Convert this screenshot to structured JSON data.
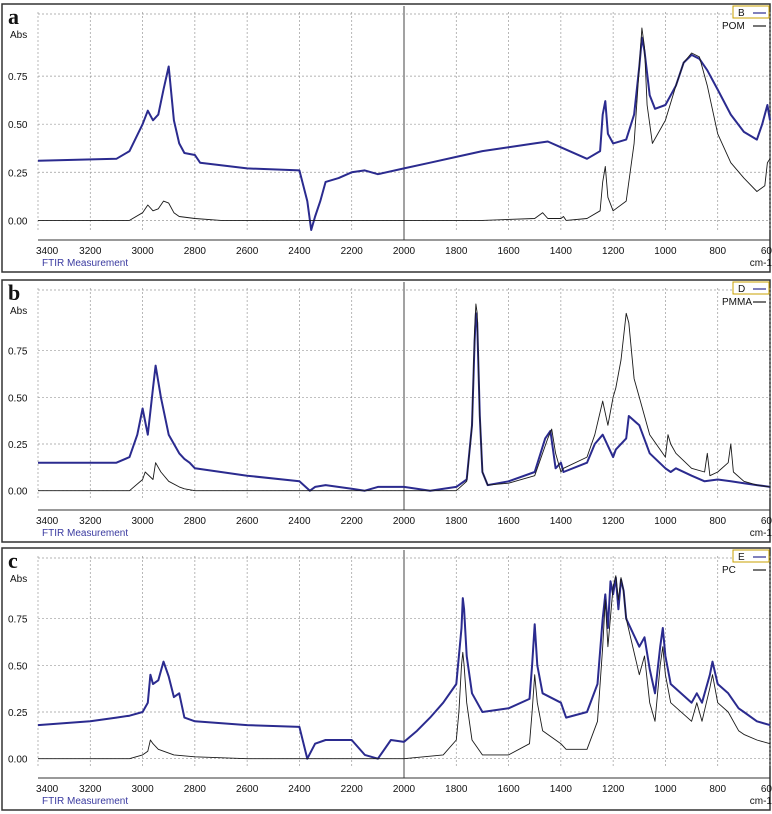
{
  "colors": {
    "sample_line": "#2b2b8f",
    "reference_line": "#1a1a1a",
    "grid": "#9a9a9a",
    "legend_box_border": "#c8a000",
    "footer_text": "#3a3aa0",
    "panel_border": "#333333"
  },
  "chart_data": [
    {
      "type": "line",
      "panel_label": "a",
      "ylabel": "Abs",
      "xunit_label": "cm-1",
      "footer": "FTIR Measurement",
      "x_ticks": [
        3400,
        3200,
        3000,
        2800,
        2600,
        2400,
        2200,
        2000,
        1800,
        1600,
        1400,
        1200,
        1000,
        800,
        "60"
      ],
      "y_ticks": [
        "0.00",
        "0.25",
        "0.50",
        "0.75"
      ],
      "xlim": [
        3400,
        600
      ],
      "ylim": [
        -0.05,
        1.0
      ],
      "legend": [
        {
          "label": "B"
        },
        {
          "label": "POM"
        }
      ],
      "series": [
        {
          "name": "B",
          "x": [
            3400,
            3100,
            3050,
            3000,
            2980,
            2960,
            2940,
            2920,
            2900,
            2880,
            2860,
            2840,
            2800,
            2780,
            2600,
            2400,
            2370,
            2355,
            2340,
            2320,
            2300,
            2250,
            2200,
            2150,
            2100,
            2000,
            1900,
            1800,
            1700,
            1600,
            1500,
            1450,
            1400,
            1300,
            1250,
            1240,
            1230,
            1220,
            1200,
            1150,
            1120,
            1100,
            1090,
            1080,
            1060,
            1040,
            1000,
            960,
            930,
            900,
            870,
            840,
            800,
            750,
            700,
            650,
            630,
            610,
            600
          ],
          "y": [
            0.31,
            0.32,
            0.36,
            0.5,
            0.57,
            0.52,
            0.55,
            0.68,
            0.8,
            0.52,
            0.4,
            0.35,
            0.34,
            0.3,
            0.27,
            0.26,
            0.1,
            -0.05,
            0.02,
            0.1,
            0.2,
            0.22,
            0.25,
            0.26,
            0.24,
            0.27,
            0.3,
            0.33,
            0.36,
            0.38,
            0.4,
            0.41,
            0.38,
            0.32,
            0.36,
            0.55,
            0.62,
            0.45,
            0.4,
            0.42,
            0.55,
            0.8,
            0.95,
            0.88,
            0.65,
            0.58,
            0.6,
            0.7,
            0.82,
            0.86,
            0.84,
            0.78,
            0.68,
            0.55,
            0.46,
            0.42,
            0.5,
            0.6,
            0.52
          ]
        },
        {
          "name": "POM",
          "x": [
            3400,
            3050,
            3000,
            2980,
            2960,
            2940,
            2920,
            2900,
            2880,
            2860,
            2800,
            2700,
            2400,
            2000,
            1700,
            1500,
            1470,
            1450,
            1400,
            1390,
            1380,
            1300,
            1250,
            1240,
            1230,
            1220,
            1200,
            1150,
            1120,
            1100,
            1090,
            1080,
            1070,
            1050,
            1000,
            960,
            930,
            900,
            870,
            840,
            800,
            750,
            700,
            650,
            620,
            610,
            600
          ],
          "y": [
            0.0,
            0.0,
            0.04,
            0.08,
            0.05,
            0.06,
            0.1,
            0.09,
            0.04,
            0.02,
            0.01,
            0.0,
            0.0,
            0.0,
            0.0,
            0.01,
            0.04,
            0.01,
            0.01,
            0.02,
            0.0,
            0.01,
            0.05,
            0.2,
            0.28,
            0.12,
            0.05,
            0.1,
            0.4,
            0.8,
            1.0,
            0.9,
            0.6,
            0.4,
            0.52,
            0.7,
            0.82,
            0.87,
            0.85,
            0.7,
            0.45,
            0.3,
            0.22,
            0.15,
            0.18,
            0.3,
            0.32
          ]
        }
      ]
    },
    {
      "type": "line",
      "panel_label": "b",
      "ylabel": "Abs",
      "xunit_label": "cm-1",
      "footer": "FTIR Measurement",
      "x_ticks": [
        3400,
        3200,
        3000,
        2800,
        2600,
        2400,
        2200,
        2000,
        1800,
        1600,
        1400,
        1200,
        1000,
        800,
        "60"
      ],
      "y_ticks": [
        "0.00",
        "0.25",
        "0.50",
        "0.75"
      ],
      "xlim": [
        3400,
        600
      ],
      "ylim": [
        -0.05,
        1.0
      ],
      "legend": [
        {
          "label": "D"
        },
        {
          "label": "PMMA"
        }
      ],
      "series": [
        {
          "name": "D",
          "x": [
            3400,
            3100,
            3050,
            3020,
            3000,
            2980,
            2960,
            2950,
            2930,
            2900,
            2860,
            2840,
            2820,
            2800,
            2600,
            2400,
            2360,
            2340,
            2300,
            2200,
            2150,
            2100,
            2000,
            1900,
            1800,
            1760,
            1740,
            1730,
            1725,
            1720,
            1710,
            1700,
            1680,
            1600,
            1500,
            1460,
            1440,
            1430,
            1420,
            1400,
            1390,
            1300,
            1270,
            1240,
            1200,
            1190,
            1150,
            1140,
            1100,
            1060,
            1000,
            980,
            960,
            900,
            850,
            800,
            750,
            700,
            650,
            600
          ],
          "y": [
            0.15,
            0.15,
            0.18,
            0.3,
            0.44,
            0.3,
            0.55,
            0.67,
            0.5,
            0.3,
            0.2,
            0.17,
            0.15,
            0.12,
            0.08,
            0.05,
            0.0,
            0.02,
            0.03,
            0.01,
            0.0,
            0.02,
            0.02,
            0.0,
            0.02,
            0.06,
            0.35,
            0.8,
            0.95,
            0.9,
            0.4,
            0.1,
            0.03,
            0.05,
            0.1,
            0.28,
            0.32,
            0.22,
            0.12,
            0.15,
            0.1,
            0.15,
            0.25,
            0.3,
            0.18,
            0.22,
            0.28,
            0.4,
            0.35,
            0.2,
            0.12,
            0.1,
            0.12,
            0.08,
            0.05,
            0.06,
            0.05,
            0.04,
            0.03,
            0.02
          ]
        },
        {
          "name": "PMMA",
          "x": [
            3400,
            3050,
            3000,
            2990,
            2960,
            2950,
            2930,
            2900,
            2860,
            2840,
            2800,
            2600,
            2400,
            2000,
            1800,
            1760,
            1740,
            1730,
            1725,
            1720,
            1710,
            1700,
            1680,
            1600,
            1500,
            1450,
            1435,
            1420,
            1400,
            1390,
            1300,
            1270,
            1240,
            1220,
            1200,
            1190,
            1170,
            1150,
            1140,
            1120,
            1100,
            1060,
            1000,
            990,
            980,
            960,
            900,
            850,
            840,
            830,
            800,
            760,
            750,
            740,
            700,
            650,
            600
          ],
          "y": [
            0.0,
            0.0,
            0.06,
            0.1,
            0.06,
            0.15,
            0.1,
            0.05,
            0.02,
            0.01,
            0.0,
            0.0,
            0.0,
            0.0,
            0.0,
            0.05,
            0.35,
            0.85,
            1.0,
            0.95,
            0.4,
            0.1,
            0.03,
            0.04,
            0.08,
            0.28,
            0.33,
            0.2,
            0.1,
            0.12,
            0.18,
            0.3,
            0.48,
            0.35,
            0.5,
            0.55,
            0.7,
            0.95,
            0.9,
            0.6,
            0.5,
            0.3,
            0.18,
            0.3,
            0.25,
            0.2,
            0.12,
            0.1,
            0.2,
            0.08,
            0.1,
            0.15,
            0.25,
            0.1,
            0.05,
            0.03,
            0.02
          ]
        }
      ]
    },
    {
      "type": "line",
      "panel_label": "c",
      "ylabel": "Abs",
      "xunit_label": "cm-1",
      "footer": "FTIR Measurement",
      "x_ticks": [
        3400,
        3200,
        3000,
        2800,
        2600,
        2400,
        2200,
        2000,
        1800,
        1600,
        1400,
        1200,
        1000,
        800,
        "60"
      ],
      "y_ticks": [
        "0.00",
        "0.25",
        "0.50",
        "0.75"
      ],
      "xlim": [
        3400,
        600
      ],
      "ylim": [
        -0.05,
        1.0
      ],
      "legend": [
        {
          "label": "E"
        },
        {
          "label": "PC"
        }
      ],
      "series": [
        {
          "name": "E",
          "x": [
            3400,
            3200,
            3100,
            3050,
            3000,
            2980,
            2970,
            2960,
            2940,
            2920,
            2900,
            2880,
            2860,
            2840,
            2800,
            2600,
            2400,
            2370,
            2340,
            2300,
            2200,
            2150,
            2100,
            2050,
            2000,
            1950,
            1900,
            1850,
            1800,
            1780,
            1775,
            1770,
            1760,
            1740,
            1700,
            1600,
            1520,
            1510,
            1500,
            1490,
            1470,
            1400,
            1380,
            1300,
            1260,
            1240,
            1230,
            1220,
            1210,
            1200,
            1190,
            1180,
            1170,
            1160,
            1150,
            1100,
            1080,
            1060,
            1040,
            1020,
            1010,
            1000,
            980,
            900,
            880,
            860,
            830,
            820,
            800,
            760,
            720,
            700,
            650,
            600
          ],
          "y": [
            0.18,
            0.2,
            0.22,
            0.23,
            0.25,
            0.3,
            0.45,
            0.4,
            0.42,
            0.52,
            0.44,
            0.33,
            0.35,
            0.22,
            0.2,
            0.18,
            0.17,
            0.0,
            0.08,
            0.1,
            0.1,
            0.02,
            0.0,
            0.1,
            0.09,
            0.15,
            0.22,
            0.3,
            0.4,
            0.7,
            0.86,
            0.8,
            0.55,
            0.35,
            0.25,
            0.27,
            0.32,
            0.5,
            0.72,
            0.5,
            0.35,
            0.3,
            0.22,
            0.25,
            0.4,
            0.75,
            0.88,
            0.7,
            0.95,
            0.88,
            0.97,
            0.8,
            0.96,
            0.9,
            0.75,
            0.6,
            0.65,
            0.48,
            0.35,
            0.6,
            0.7,
            0.55,
            0.4,
            0.3,
            0.35,
            0.3,
            0.45,
            0.52,
            0.4,
            0.35,
            0.27,
            0.25,
            0.2,
            0.18
          ]
        },
        {
          "name": "PC",
          "x": [
            3400,
            3050,
            3000,
            2980,
            2970,
            2960,
            2940,
            2920,
            2880,
            2800,
            2600,
            2400,
            2000,
            1850,
            1800,
            1790,
            1780,
            1775,
            1770,
            1760,
            1740,
            1700,
            1600,
            1520,
            1510,
            1500,
            1490,
            1470,
            1400,
            1380,
            1300,
            1260,
            1240,
            1230,
            1220,
            1200,
            1190,
            1180,
            1170,
            1160,
            1150,
            1100,
            1080,
            1060,
            1040,
            1020,
            1010,
            1000,
            980,
            900,
            880,
            860,
            830,
            820,
            800,
            760,
            720,
            700,
            650,
            600
          ],
          "y": [
            0.0,
            0.0,
            0.02,
            0.04,
            0.1,
            0.08,
            0.05,
            0.04,
            0.02,
            0.01,
            0.0,
            0.0,
            0.0,
            0.02,
            0.1,
            0.25,
            0.5,
            0.57,
            0.5,
            0.3,
            0.1,
            0.02,
            0.02,
            0.08,
            0.25,
            0.45,
            0.3,
            0.15,
            0.08,
            0.05,
            0.05,
            0.2,
            0.6,
            0.85,
            0.6,
            0.92,
            0.98,
            0.85,
            0.97,
            0.9,
            0.75,
            0.45,
            0.55,
            0.3,
            0.2,
            0.5,
            0.6,
            0.45,
            0.3,
            0.2,
            0.3,
            0.2,
            0.38,
            0.45,
            0.3,
            0.25,
            0.15,
            0.13,
            0.1,
            0.08
          ]
        }
      ]
    }
  ]
}
